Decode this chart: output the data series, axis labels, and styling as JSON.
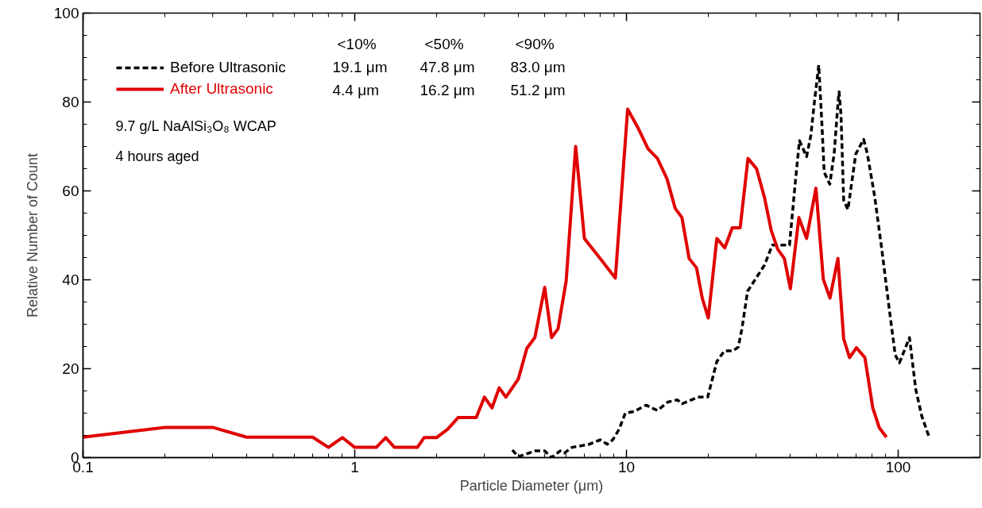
{
  "chart_data": {
    "type": "line",
    "xlabel": "Particle Diameter (μm)",
    "ylabel": "Relative Number of Count",
    "log": "x",
    "xlim": [
      0.1,
      200
    ],
    "xticks": [
      0.1,
      1,
      10,
      100
    ],
    "ylim": [
      0,
      100
    ],
    "yticks": [
      0,
      20,
      40,
      60,
      80,
      100
    ],
    "grid": false,
    "legend": "top left",
    "marker": "none",
    "series": [
      {
        "name": "Before Ultrasonic",
        "color": "#000000",
        "line_style": "dashed",
        "x": [
          3.8,
          4.0,
          4.6,
          5.0,
          5.3,
          5.7,
          5.9,
          6.3,
          7.3,
          8.0,
          8.5,
          8.9,
          9.4,
          9.9,
          10.7,
          11.8,
          13,
          14.2,
          15.4,
          16,
          18.3,
          19.9,
          21.5,
          22.9,
          24.7,
          25.8,
          26.6,
          27.9,
          30,
          32.2,
          34.4,
          39.8,
          41.7,
          43.3,
          46,
          47.7,
          49.2,
          51,
          52.4,
          53.4,
          56,
          58.1,
          60.1,
          60.6,
          61.6,
          63,
          65.3,
          69.8,
          74.6,
          77,
          81.9,
          87,
          92,
          97.5,
          101,
          110,
          116,
          122,
          130
        ],
        "values": [
          1.7,
          0.2,
          1.5,
          1.5,
          0,
          1.5,
          1,
          2.3,
          3,
          4,
          3,
          4,
          6.4,
          10,
          10.4,
          11.8,
          10.6,
          12.5,
          13,
          12.1,
          13.6,
          13.6,
          21.6,
          24,
          24,
          24.9,
          29,
          37.4,
          40.4,
          43.3,
          47.8,
          47.8,
          61.2,
          71.3,
          67.7,
          72.5,
          80.2,
          88.3,
          74.9,
          64.2,
          61.5,
          68.3,
          80.2,
          82.3,
          77,
          57.9,
          55.8,
          68.3,
          71.6,
          68.3,
          58.8,
          46.9,
          35,
          23.1,
          21.3,
          27,
          15.4,
          9.4,
          4.6
        ]
      },
      {
        "name": "After Ultrasonic",
        "color": "#e00000",
        "line_style": "solid",
        "x": [
          0.1,
          0.2,
          0.3,
          0.4,
          0.7,
          0.8,
          0.9,
          1.0,
          1.2,
          1.3,
          1.4,
          1.7,
          1.8,
          2.0,
          2.2,
          2.4,
          2.8,
          3.0,
          3.2,
          3.4,
          3.6,
          4.0,
          4.3,
          4.6,
          5.0,
          5.3,
          5.6,
          6.0,
          6.5,
          7.0,
          8.0,
          9.1,
          10.1,
          11,
          12,
          13,
          14.1,
          15.1,
          16,
          17,
          18.1,
          19,
          20,
          21.5,
          23,
          24.5,
          26.2,
          28,
          30.1,
          32.2,
          34.1,
          36,
          38.1,
          40.1,
          43.1,
          46,
          49.8,
          53,
          56.1,
          60,
          63,
          66.2,
          70.2,
          75.4,
          80.6,
          85.2,
          90.5
        ],
        "values": [
          4.6,
          6.8,
          6.8,
          4.6,
          4.6,
          2.3,
          4.5,
          2.3,
          2.3,
          4.5,
          2.3,
          2.3,
          4.5,
          4.5,
          6.4,
          9,
          9,
          13.6,
          11.2,
          15.7,
          13.6,
          17.7,
          24.6,
          27,
          38.3,
          27,
          29,
          39.8,
          70,
          49.3,
          44.8,
          40.4,
          78.4,
          74.3,
          69.5,
          67.3,
          62.7,
          56.1,
          54,
          44.8,
          42.7,
          35.9,
          31.4,
          49.3,
          47.2,
          51.7,
          51.7,
          67.3,
          65,
          58.5,
          51.1,
          46.9,
          44.8,
          38,
          54,
          49.3,
          60.6,
          40.1,
          35.9,
          44.8,
          26.7,
          22.5,
          24.7,
          22.5,
          11.2,
          6.7,
          4.6
        ]
      }
    ],
    "annotations": [
      "<10%",
      "<50%",
      "<90%",
      "19.1 μm",
      "47.8 μm",
      "83.0 μm",
      "4.4 μm",
      "16.2 μm",
      "51.2 μm",
      "9.7 g/L NaAlSi₃O₈ WCAP",
      "4 hours aged"
    ]
  }
}
